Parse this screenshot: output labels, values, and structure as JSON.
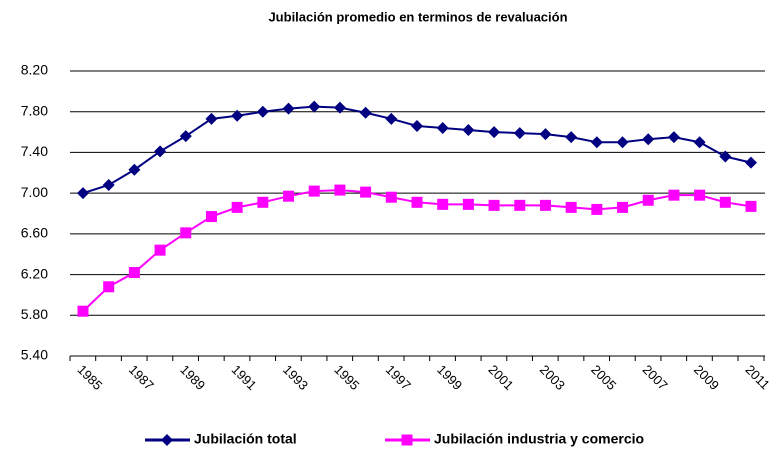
{
  "chart_data": {
    "type": "line",
    "title": "Jubilación promedio en terminos de revaluación",
    "categories": [
      "1985",
      null,
      "1987",
      null,
      "1989",
      null,
      "1991",
      null,
      "1993",
      null,
      "1995",
      null,
      "1997",
      null,
      "1999",
      null,
      "2001",
      null,
      "2003",
      null,
      "2005",
      null,
      "2007",
      null,
      "2009",
      null,
      "2011"
    ],
    "series": [
      {
        "name": "Jubilación total",
        "color": "#000080",
        "marker": "diamond",
        "values": [
          7.0,
          7.08,
          7.23,
          7.41,
          7.56,
          7.73,
          7.76,
          7.8,
          7.83,
          7.85,
          7.84,
          7.79,
          7.73,
          7.66,
          7.64,
          7.62,
          7.6,
          7.59,
          7.58,
          7.55,
          7.5,
          7.5,
          7.53,
          7.55,
          7.5,
          7.36,
          7.3
        ]
      },
      {
        "name": "Jubilación industria y comercio",
        "color": "#ff00ff",
        "marker": "square",
        "values": [
          5.84,
          6.08,
          6.22,
          6.44,
          6.61,
          6.77,
          6.86,
          6.91,
          6.97,
          7.02,
          7.03,
          7.01,
          6.96,
          6.91,
          6.89,
          6.89,
          6.88,
          6.88,
          6.88,
          6.86,
          6.84,
          6.86,
          6.93,
          6.98,
          6.98,
          6.91,
          6.87
        ]
      }
    ],
    "ylim": [
      5.4,
      8.2
    ],
    "yticks": [
      {
        "value": 5.4,
        "label": "5.40"
      },
      {
        "value": 5.8,
        "label": "5.80"
      },
      {
        "value": 6.2,
        "label": "6.20"
      },
      {
        "value": 6.6,
        "label": "6.60"
      },
      {
        "value": 7.0,
        "label": "7.00"
      },
      {
        "value": 7.4,
        "label": "7.40"
      },
      {
        "value": 7.8,
        "label": "7.80"
      },
      {
        "value": 8.2,
        "label": "8.20"
      }
    ],
    "grid": true,
    "legend": "bottom"
  }
}
